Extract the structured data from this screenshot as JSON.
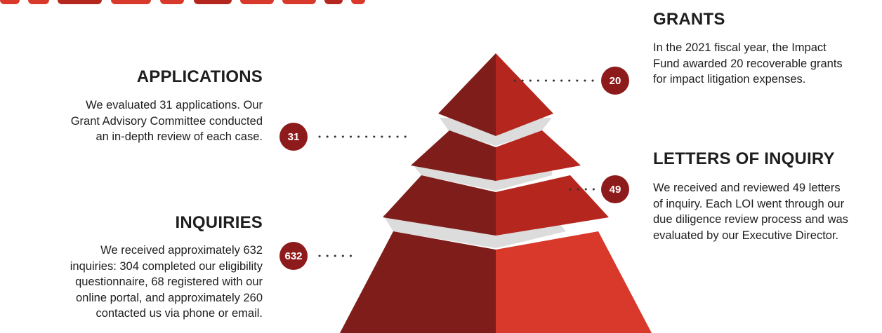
{
  "colors": {
    "dark_red": "#7e1d19",
    "mid_red": "#b5261e",
    "bright_red": "#d9392a",
    "badge": "#8e1b1b",
    "band": "#dcdcdc"
  },
  "sections": {
    "applications": {
      "title": "APPLICATIONS",
      "lines": [
        "We evaluated 31 applications. Our",
        "Grant Advisory Committee conducted",
        "an in-depth review of each case."
      ],
      "count": "31"
    },
    "inquiries": {
      "title": "INQUIRIES",
      "lines": [
        "We received approximately 632",
        "inquiries: 304 completed our eligibility",
        "questionnaire, 68 registered with our",
        "online portal, and approximately 260",
        "contacted us via phone or email."
      ],
      "count": "632"
    },
    "grants": {
      "title": "GRANTS",
      "lines": [
        "In the 2021 fiscal year, the Impact",
        "Fund awarded 20 recoverable grants",
        "for impact litigation expenses."
      ],
      "count": "20"
    },
    "letters_of_inquiry": {
      "title": "LETTERS OF INQUIRY",
      "lines": [
        "We received and reviewed 49 letters",
        "of inquiry. Each LOI went through our",
        "due diligence review process and was",
        "evaluated by our Executive Director."
      ],
      "count": "49"
    }
  }
}
